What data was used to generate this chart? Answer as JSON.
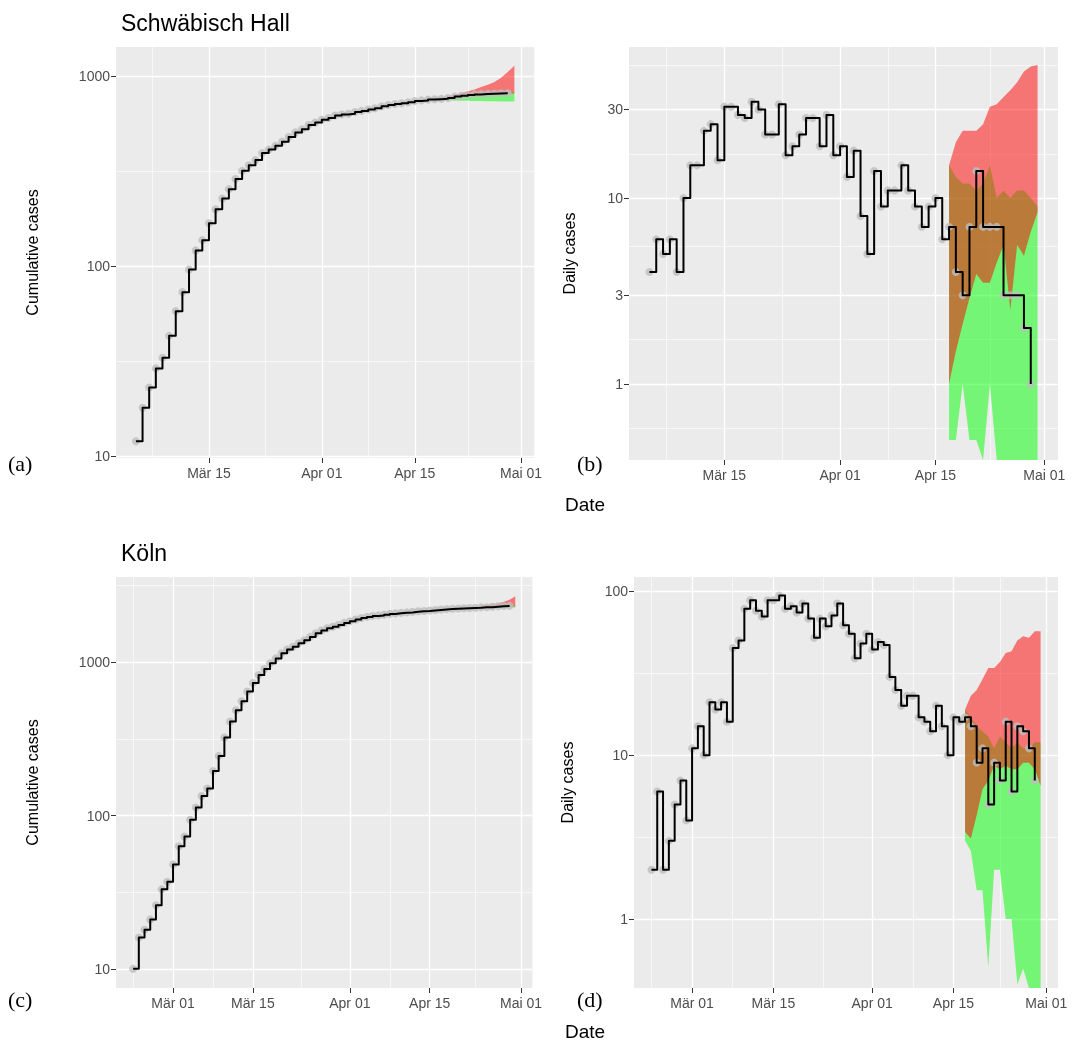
{
  "chart_data": [
    {
      "type": "step",
      "title": "Schwäbisch Hall",
      "ylabel": "Cumulative cases",
      "annotations": [
        "(a)"
      ],
      "log": true,
      "grid": true,
      "xlim": [
        "--03-01",
        "--05-03"
      ],
      "xticks": [
        {
          "value": "--03-15",
          "label": "Mär 15"
        },
        {
          "value": "--04-01",
          "label": "Apr 01"
        },
        {
          "value": "--04-15",
          "label": "Apr 15"
        },
        {
          "value": "--05-01",
          "label": "Mai 01"
        }
      ],
      "ylim": [
        9.8,
        1420
      ],
      "yticks": [
        10,
        100,
        1000
      ],
      "series": [
        {
          "type": "area",
          "color": "#00ff00",
          "x": [
            "--04-17",
            "--04-18",
            "--04-19",
            "--04-20",
            "--04-21",
            "--04-22",
            "--04-23",
            "--04-24",
            "--04-25",
            "--04-26",
            "--04-27",
            "--04-28",
            "--04-29",
            "--04-30"
          ],
          "values": [
            null,
            null,
            null,
            null,
            null,
            null,
            null,
            null,
            null,
            null,
            null,
            null,
            null,
            null
          ],
          "lower": [
            751,
            748,
            746,
            744,
            742,
            741,
            740,
            739,
            738,
            737,
            736,
            735,
            734,
            733
          ],
          "upper": [
            751,
            757,
            762,
            768,
            775,
            782,
            790,
            797,
            803,
            808,
            812,
            815,
            818,
            820
          ]
        },
        {
          "type": "area",
          "color": "#ff0000",
          "x": [
            "--04-17",
            "--04-18",
            "--04-19",
            "--04-20",
            "--04-21",
            "--04-22",
            "--04-23",
            "--04-24",
            "--04-25",
            "--04-26",
            "--04-27",
            "--04-28",
            "--04-29",
            "--04-30"
          ],
          "values": [
            null,
            null,
            null,
            null,
            null,
            null,
            null,
            null,
            null,
            null,
            null,
            null,
            null,
            null
          ],
          "lower": [
            751,
            755,
            758,
            762,
            768,
            775,
            782,
            788,
            792,
            796,
            800,
            803,
            806,
            808
          ],
          "upper": [
            751,
            760,
            770,
            782,
            795,
            810,
            830,
            850,
            875,
            900,
            930,
            980,
            1050,
            1130
          ]
        },
        {
          "type": "step",
          "color": "#000000",
          "marker": "circle",
          "x": [
            "--03-04",
            "--03-05",
            "--03-06",
            "--03-07",
            "--03-08",
            "--03-09",
            "--03-10",
            "--03-11",
            "--03-12",
            "--03-13",
            "--03-14",
            "--03-15",
            "--03-16",
            "--03-17",
            "--03-18",
            "--03-19",
            "--03-20",
            "--03-21",
            "--03-22",
            "--03-23",
            "--03-24",
            "--03-25",
            "--03-26",
            "--03-27",
            "--03-28",
            "--03-29",
            "--03-30",
            "--03-31",
            "--04-01",
            "--04-02",
            "--04-03",
            "--04-04",
            "--04-05",
            "--04-06",
            "--04-07",
            "--04-08",
            "--04-09",
            "--04-10",
            "--04-11",
            "--04-12",
            "--04-13",
            "--04-14",
            "--04-15",
            "--04-16",
            "--04-17",
            "--04-18",
            "--04-19",
            "--04-20",
            "--04-21",
            "--04-22",
            "--04-23",
            "--04-24",
            "--04-25",
            "--04-26",
            "--04-27",
            "--04-28",
            "--04-29"
          ],
          "values": [
            12,
            18,
            23,
            29,
            33,
            43,
            58,
            73,
            96,
            121,
            137,
            168,
            199,
            227,
            254,
            287,
            317,
            339,
            361,
            393,
            410,
            429,
            451,
            478,
            505,
            524,
            552,
            569,
            588,
            601,
            619,
            627,
            632,
            646,
            655,
            666,
            677,
            692,
            703,
            712,
            719,
            728,
            738,
            744,
            751,
            755,
            758,
            765,
            779,
            786,
            793,
            800,
            803,
            806,
            809,
            811,
            812
          ]
        }
      ]
    },
    {
      "type": "step",
      "xlabel": "Date",
      "ylabel": "Daily cases",
      "annotations": [
        "(b)"
      ],
      "log": true,
      "grid": true,
      "xlim": [
        "--03-01",
        "--05-03"
      ],
      "xticks": [
        {
          "value": "--03-15",
          "label": "Mär 15"
        },
        {
          "value": "--04-01",
          "label": "Apr 01"
        },
        {
          "value": "--04-15",
          "label": "Apr 15"
        },
        {
          "value": "--05-01",
          "label": "Mai 01"
        }
      ],
      "ylim": [
        0.39,
        65
      ],
      "yticks": [
        1,
        3,
        10,
        30
      ],
      "series": [
        {
          "type": "area",
          "color": "#00ff00",
          "x": [
            "--04-17",
            "--04-18",
            "--04-19",
            "--04-20",
            "--04-21",
            "--04-22",
            "--04-23",
            "--04-24",
            "--04-25",
            "--04-26",
            "--04-27",
            "--04-28",
            "--04-29",
            "--04-30"
          ],
          "values": [
            null,
            null,
            null,
            null,
            null,
            null,
            null,
            null,
            null,
            null,
            null,
            null,
            null,
            null
          ],
          "lower": [
            0.5,
            0.5,
            1,
            0.5,
            0.5,
            0.39,
            1,
            0.39,
            0.39,
            0.39,
            0.39,
            0.39,
            0.39,
            0.39
          ],
          "upper": [
            15,
            13,
            12,
            12,
            11,
            12,
            15,
            10,
            11,
            10,
            11,
            11,
            10,
            9
          ]
        },
        {
          "type": "area",
          "color": "#ff0000",
          "x": [
            "--04-17",
            "--04-18",
            "--04-19",
            "--04-20",
            "--04-21",
            "--04-22",
            "--04-23",
            "--04-24",
            "--04-25",
            "--04-26",
            "--04-27",
            "--04-28",
            "--04-29",
            "--04-30"
          ],
          "values": [
            null,
            null,
            null,
            null,
            null,
            null,
            null,
            null,
            null,
            null,
            null,
            null,
            null,
            null
          ],
          "lower": [
            1,
            1.5,
            2.1,
            2.9,
            3.9,
            3.5,
            3.5,
            4.5,
            5.6,
            2.5,
            5.6,
            4.9,
            6.6,
            8.4
          ],
          "upper": [
            15,
            20,
            23,
            23,
            23,
            25,
            31,
            32,
            35,
            38,
            42,
            48,
            51,
            52
          ]
        },
        {
          "type": "step",
          "color": "#000000",
          "marker": "circle",
          "x": [
            "--03-04",
            "--03-05",
            "--03-06",
            "--03-07",
            "--03-08",
            "--03-09",
            "--03-10",
            "--03-11",
            "--03-12",
            "--03-13",
            "--03-14",
            "--03-15",
            "--03-16",
            "--03-17",
            "--03-18",
            "--03-19",
            "--03-20",
            "--03-21",
            "--03-22",
            "--03-23",
            "--03-24",
            "--03-25",
            "--03-26",
            "--03-27",
            "--03-28",
            "--03-29",
            "--03-30",
            "--03-31",
            "--04-01",
            "--04-02",
            "--04-03",
            "--04-04",
            "--04-05",
            "--04-06",
            "--04-07",
            "--04-08",
            "--04-09",
            "--04-10",
            "--04-11",
            "--04-12",
            "--04-13",
            "--04-14",
            "--04-15",
            "--04-16",
            "--04-17",
            "--04-18",
            "--04-19",
            "--04-20",
            "--04-21",
            "--04-22",
            "--04-23",
            "--04-24",
            "--04-25",
            "--04-26",
            "--04-27",
            "--04-28",
            "--04-29"
          ],
          "values": [
            4,
            6,
            5,
            6,
            4,
            10,
            15,
            15,
            23,
            25,
            16,
            31,
            31,
            28,
            27,
            33,
            30,
            22,
            22,
            32,
            17,
            19,
            22,
            27,
            27,
            19,
            28,
            17,
            19,
            13,
            18,
            8,
            5,
            14,
            9,
            11,
            11,
            15,
            11,
            9,
            7,
            9,
            10,
            6,
            7,
            4,
            3,
            7,
            14,
            7,
            7,
            7,
            3,
            3,
            3,
            2,
            1
          ]
        }
      ]
    },
    {
      "type": "step",
      "title": "Köln",
      "ylabel": "Cumulative cases",
      "annotations": [
        "(c)"
      ],
      "log": true,
      "grid": true,
      "xlim": [
        "--02-20",
        "--05-03"
      ],
      "xticks": [
        {
          "value": "--03-01",
          "label": "Mär 01"
        },
        {
          "value": "--03-15",
          "label": "Mär 15"
        },
        {
          "value": "--04-01",
          "label": "Apr 01"
        },
        {
          "value": "--04-15",
          "label": "Apr 15"
        },
        {
          "value": "--05-01",
          "label": "Mai 01"
        }
      ],
      "ylim": [
        7.5,
        3600
      ],
      "yticks": [
        10,
        100,
        1000
      ],
      "series": [
        {
          "type": "area",
          "color": "#00ff00",
          "x": [
            "--04-17",
            "--04-18",
            "--04-19",
            "--04-20",
            "--04-21",
            "--04-22",
            "--04-23",
            "--04-24",
            "--04-25",
            "--04-26",
            "--04-27",
            "--04-28",
            "--04-29",
            "--04-30"
          ],
          "values": [
            null,
            null,
            null,
            null,
            null,
            null,
            null,
            null,
            null,
            null,
            null,
            null,
            null,
            null
          ],
          "lower": [
            2210,
            2215,
            2220,
            2225,
            2230,
            2235,
            2240,
            2245,
            2250,
            2255,
            2260,
            2265,
            2270,
            2275
          ],
          "upper": [
            2210,
            2222,
            2234,
            2246,
            2256,
            2266,
            2276,
            2286,
            2296,
            2304,
            2312,
            2320,
            2328,
            2335
          ]
        },
        {
          "type": "area",
          "color": "#ff0000",
          "x": [
            "--04-17",
            "--04-18",
            "--04-19",
            "--04-20",
            "--04-21",
            "--04-22",
            "--04-23",
            "--04-24",
            "--04-25",
            "--04-26",
            "--04-27",
            "--04-28",
            "--04-29",
            "--04-30"
          ],
          "values": [
            null,
            null,
            null,
            null,
            null,
            null,
            null,
            null,
            null,
            null,
            null,
            null,
            null,
            null
          ],
          "lower": [
            2210,
            2218,
            2226,
            2234,
            2242,
            2250,
            2258,
            2266,
            2274,
            2282,
            2290,
            2298,
            2306,
            2312
          ],
          "upper": [
            2210,
            2225,
            2240,
            2258,
            2275,
            2295,
            2315,
            2340,
            2365,
            2395,
            2430,
            2480,
            2560,
            2700
          ]
        },
        {
          "type": "step",
          "color": "#000000",
          "marker": "circle",
          "x": [
            "--02-23",
            "--02-24",
            "--02-25",
            "--02-26",
            "--02-27",
            "--02-28",
            "--02-29",
            "--03-01",
            "--03-02",
            "--03-03",
            "--03-04",
            "--03-05",
            "--03-06",
            "--03-07",
            "--03-08",
            "--03-09",
            "--03-10",
            "--03-11",
            "--03-12",
            "--03-13",
            "--03-14",
            "--03-15",
            "--03-16",
            "--03-17",
            "--03-18",
            "--03-19",
            "--03-20",
            "--03-21",
            "--03-22",
            "--03-23",
            "--03-24",
            "--03-25",
            "--03-26",
            "--03-27",
            "--03-28",
            "--03-29",
            "--03-30",
            "--03-31",
            "--04-01",
            "--04-02",
            "--04-03",
            "--04-04",
            "--04-05",
            "--04-06",
            "--04-07",
            "--04-08",
            "--04-09",
            "--04-10",
            "--04-11",
            "--04-12",
            "--04-13",
            "--04-14",
            "--04-15",
            "--04-16",
            "--04-17",
            "--04-18",
            "--04-19",
            "--04-20",
            "--04-21",
            "--04-22",
            "--04-23",
            "--04-24",
            "--04-25",
            "--04-26",
            "--04-27",
            "--04-28",
            "--04-29"
          ],
          "values": [
            10,
            16,
            18,
            21,
            26,
            33,
            37,
            48,
            63,
            73,
            94,
            113,
            134,
            150,
            195,
            245,
            323,
            411,
            487,
            557,
            645,
            733,
            827,
            905,
            986,
            1060,
            1144,
            1212,
            1264,
            1332,
            1393,
            1464,
            1548,
            1610,
            1665,
            1704,
            1752,
            1807,
            1851,
            1900,
            1947,
            1977,
            2002,
            2022,
            2045,
            2068,
            2085,
            2101,
            2115,
            2135,
            2150,
            2160,
            2177,
            2193,
            2210,
            2225,
            2234,
            2245,
            2250,
            2259,
            2266,
            2282,
            2288,
            2303,
            2317,
            2328,
            2335
          ]
        }
      ]
    },
    {
      "type": "step",
      "xlabel": "Date",
      "ylabel": "Daily cases",
      "annotations": [
        "(d)"
      ],
      "log": true,
      "grid": true,
      "xlim": [
        "--02-20",
        "--05-03"
      ],
      "xticks": [
        {
          "value": "--03-01",
          "label": "Mär 01"
        },
        {
          "value": "--03-15",
          "label": "Mär 15"
        },
        {
          "value": "--04-01",
          "label": "Apr 01"
        },
        {
          "value": "--04-15",
          "label": "Apr 15"
        },
        {
          "value": "--05-01",
          "label": "Mai 01"
        }
      ],
      "ylim": [
        0.38,
        122
      ],
      "yticks": [
        1,
        10,
        100
      ],
      "series": [
        {
          "type": "area",
          "color": "#00ff00",
          "x": [
            "--04-17",
            "--04-18",
            "--04-19",
            "--04-20",
            "--04-21",
            "--04-22",
            "--04-23",
            "--04-24",
            "--04-25",
            "--04-26",
            "--04-27",
            "--04-28",
            "--04-29",
            "--04-30"
          ],
          "values": [
            null,
            null,
            null,
            null,
            null,
            null,
            null,
            null,
            null,
            null,
            null,
            null,
            null,
            null
          ],
          "lower": [
            3,
            2.6,
            1.5,
            1.5,
            0.51,
            2,
            2,
            1,
            1,
            0.4,
            0.5,
            0.38,
            0.38,
            0.38
          ],
          "upper": [
            19,
            17,
            15,
            14,
            13,
            11,
            13,
            12,
            11,
            12,
            11,
            11,
            12,
            12
          ]
        },
        {
          "type": "area",
          "color": "#ff0000",
          "x": [
            "--04-17",
            "--04-18",
            "--04-19",
            "--04-20",
            "--04-21",
            "--04-22",
            "--04-23",
            "--04-24",
            "--04-25",
            "--04-26",
            "--04-27",
            "--04-28",
            "--04-29",
            "--04-30"
          ],
          "values": [
            null,
            null,
            null,
            null,
            null,
            null,
            null,
            null,
            null,
            null,
            null,
            null,
            null,
            null
          ],
          "lower": [
            3.4,
            3.1,
            4.3,
            6.2,
            7,
            8.6,
            8.2,
            8.6,
            8.2,
            8.2,
            9,
            9,
            8.2,
            6.5
          ],
          "upper": [
            19,
            23,
            25,
            29,
            34,
            34,
            37,
            42,
            43,
            50,
            53,
            52,
            57,
            57
          ]
        },
        {
          "type": "step",
          "color": "#000000",
          "marker": "circle",
          "x": [
            "--02-23",
            "--02-24",
            "--02-25",
            "--02-26",
            "--02-27",
            "--02-28",
            "--02-29",
            "--03-01",
            "--03-02",
            "--03-03",
            "--03-04",
            "--03-05",
            "--03-06",
            "--03-07",
            "--03-08",
            "--03-09",
            "--03-10",
            "--03-11",
            "--03-12",
            "--03-13",
            "--03-14",
            "--03-15",
            "--03-16",
            "--03-17",
            "--03-18",
            "--03-19",
            "--03-20",
            "--03-21",
            "--03-22",
            "--03-23",
            "--03-24",
            "--03-25",
            "--03-26",
            "--03-27",
            "--03-28",
            "--03-29",
            "--03-30",
            "--03-31",
            "--04-01",
            "--04-02",
            "--04-03",
            "--04-04",
            "--04-05",
            "--04-06",
            "--04-07",
            "--04-08",
            "--04-09",
            "--04-10",
            "--04-11",
            "--04-12",
            "--04-13",
            "--04-14",
            "--04-15",
            "--04-16",
            "--04-17",
            "--04-18",
            "--04-19",
            "--04-20",
            "--04-21",
            "--04-22",
            "--04-23",
            "--04-24",
            "--04-25",
            "--04-26",
            "--04-27",
            "--04-28",
            "--04-29"
          ],
          "values": [
            2,
            6,
            2,
            3,
            5,
            7,
            4,
            11,
            15,
            10,
            21,
            19,
            21,
            16,
            45,
            50,
            78,
            88,
            76,
            70,
            88,
            88,
            94,
            78,
            81,
            74,
            84,
            68,
            52,
            68,
            61,
            71,
            84,
            62,
            55,
            39,
            48,
            55,
            44,
            49,
            47,
            30,
            25,
            20,
            23,
            23,
            17,
            16,
            14,
            20,
            15,
            10,
            17,
            16,
            17,
            15,
            9,
            11,
            5,
            9,
            7,
            16,
            6,
            15,
            14,
            11,
            7
          ]
        }
      ]
    }
  ]
}
